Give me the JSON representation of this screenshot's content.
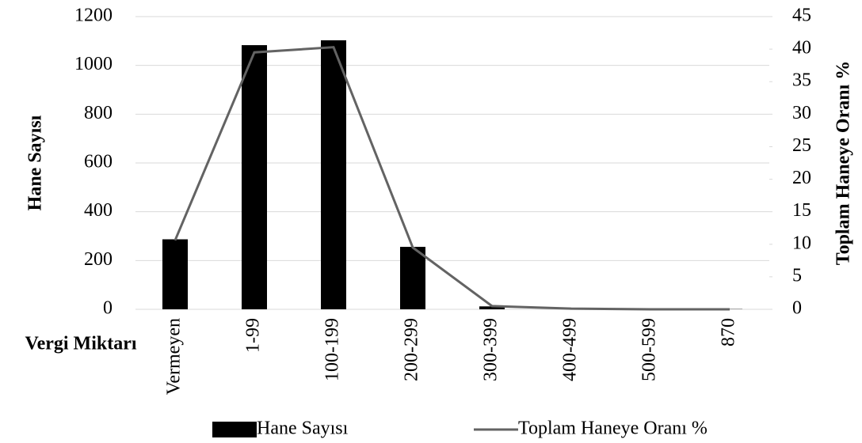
{
  "chart_data": {
    "type": "bar_line",
    "x_label": "Vergi Miktarı",
    "y_label": "Hane Sayısı",
    "y2_label": "Toplam Haneye Oranı %",
    "categories": [
      "Vermeyen",
      "1-99",
      "100-199",
      "200-299",
      "300-399",
      "400-499",
      "500-599",
      "870"
    ],
    "series": [
      {
        "name": "Hane Sayısı",
        "type": "bar",
        "color": "#000000",
        "values": [
          287,
          1083,
          1103,
          256,
          12,
          2,
          1,
          1
        ]
      },
      {
        "name": "Toplam Haneye Oranı %",
        "type": "line",
        "axis": "y2",
        "color": "#636363",
        "values": [
          10.6,
          39.5,
          40.3,
          9.5,
          0.5,
          0.1,
          0,
          0
        ]
      }
    ],
    "ylim": [
      0,
      1200
    ],
    "yticks": [
      0,
      200,
      400,
      600,
      800,
      1000,
      1200
    ],
    "y2lim": [
      0,
      45
    ],
    "y2ticks": [
      0,
      5,
      10,
      15,
      20,
      25,
      30,
      35,
      40,
      45
    ],
    "grid": true,
    "legend": "bottom"
  }
}
